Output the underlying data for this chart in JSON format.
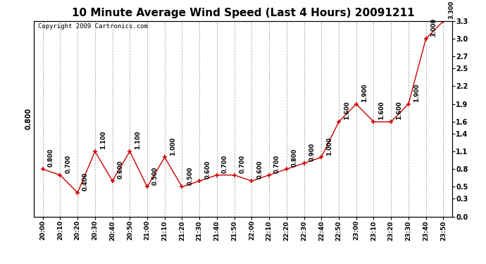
{
  "title": "10 Minute Average Wind Speed (Last 4 Hours) 20091211",
  "copyright": "Copyright 2009 Cartronics.com",
  "x_labels": [
    "20:00",
    "20:10",
    "20:20",
    "20:30",
    "20:40",
    "20:50",
    "21:00",
    "21:10",
    "21:20",
    "21:30",
    "21:40",
    "21:50",
    "22:00",
    "22:10",
    "22:20",
    "22:30",
    "22:40",
    "22:50",
    "23:00",
    "23:10",
    "23:20",
    "23:30",
    "23:40",
    "23:50"
  ],
  "y_values": [
    0.8,
    0.7,
    0.4,
    1.1,
    0.6,
    1.1,
    0.5,
    1.0,
    0.5,
    0.6,
    0.7,
    0.7,
    0.6,
    0.7,
    0.8,
    0.9,
    1.0,
    1.6,
    1.9,
    1.6,
    1.6,
    1.9,
    3.0,
    3.3
  ],
  "line_color": "#cc0000",
  "marker_color": "#cc0000",
  "bg_color": "#ffffff",
  "grid_color": "#b0b0b0",
  "ylim": [
    0.0,
    3.3
  ],
  "yticks_right": [
    0.0,
    0.3,
    0.5,
    0.8,
    1.1,
    1.4,
    1.6,
    1.9,
    2.2,
    2.5,
    2.7,
    3.0,
    3.3
  ],
  "title_fontsize": 11,
  "copyright_fontsize": 6.5,
  "annotation_fontsize": 6,
  "left_ylabel": "0.800"
}
